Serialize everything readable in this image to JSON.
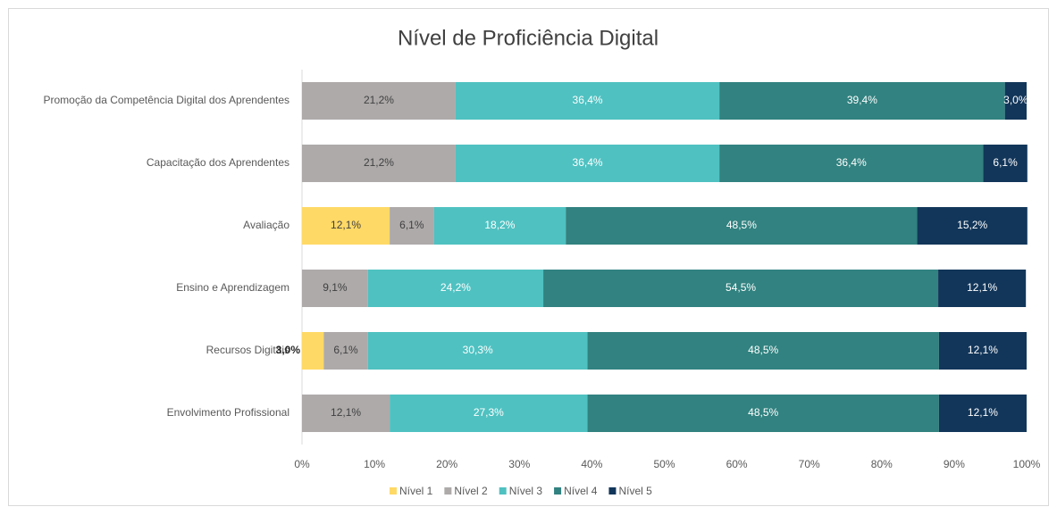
{
  "chart_data": {
    "type": "stacked-barh",
    "title": "Nível de Proficiência Digital",
    "categories": [
      "Promoção da Competência Digital dos Aprendentes",
      "Capacitação dos Aprendentes",
      "Avaliação",
      "Ensino e Aprendizagem",
      "Recursos Digitais",
      "Envolvimento Profissional"
    ],
    "series": [
      {
        "name": "Nível 1",
        "color": "#ffd966",
        "values": [
          null,
          null,
          12.1,
          null,
          3.0,
          null
        ],
        "value_labels": [
          null,
          null,
          "12,1%",
          null,
          "3,0%",
          null
        ]
      },
      {
        "name": "Nível 2",
        "color": "#aeaaaa",
        "values": [
          21.2,
          21.2,
          6.1,
          9.1,
          6.1,
          12.1
        ],
        "value_labels": [
          "21,2%",
          "21,2%",
          "6,1%",
          "9,1%",
          "6,1%",
          "12,1%"
        ]
      },
      {
        "name": "Nível 3",
        "color": "#4fc1c1",
        "values": [
          36.4,
          36.4,
          18.2,
          24.2,
          30.3,
          27.3
        ],
        "value_labels": [
          "36,4%",
          "36,4%",
          "18,2%",
          "24,2%",
          "30,3%",
          "27,3%"
        ]
      },
      {
        "name": "Nível 4",
        "color": "#318280",
        "values": [
          39.4,
          36.4,
          48.5,
          54.5,
          48.5,
          48.5
        ],
        "value_labels": [
          "39,4%",
          "36,4%",
          "48,5%",
          "54,5%",
          "48,5%",
          "48,5%"
        ]
      },
      {
        "name": "Nível 5",
        "color": "#12365a",
        "values": [
          3.0,
          6.1,
          15.2,
          12.1,
          12.1,
          12.1
        ],
        "value_labels": [
          "3,0%",
          "6,1%",
          "15,2%",
          "12,1%",
          "12,1%",
          "12,1%"
        ]
      }
    ],
    "xlim": [
      0,
      100
    ],
    "xticks": [
      {
        "value": 0,
        "label": "0%"
      },
      {
        "value": 10,
        "label": "10%"
      },
      {
        "value": 20,
        "label": "20%"
      },
      {
        "value": 30,
        "label": "30%"
      },
      {
        "value": 40,
        "label": "40%"
      },
      {
        "value": 50,
        "label": "50%"
      },
      {
        "value": 60,
        "label": "60%"
      },
      {
        "value": 70,
        "label": "70%"
      },
      {
        "value": 80,
        "label": "80%"
      },
      {
        "value": 90,
        "label": "90%"
      },
      {
        "value": 100,
        "label": "100%"
      }
    ],
    "legend": "bottom"
  }
}
